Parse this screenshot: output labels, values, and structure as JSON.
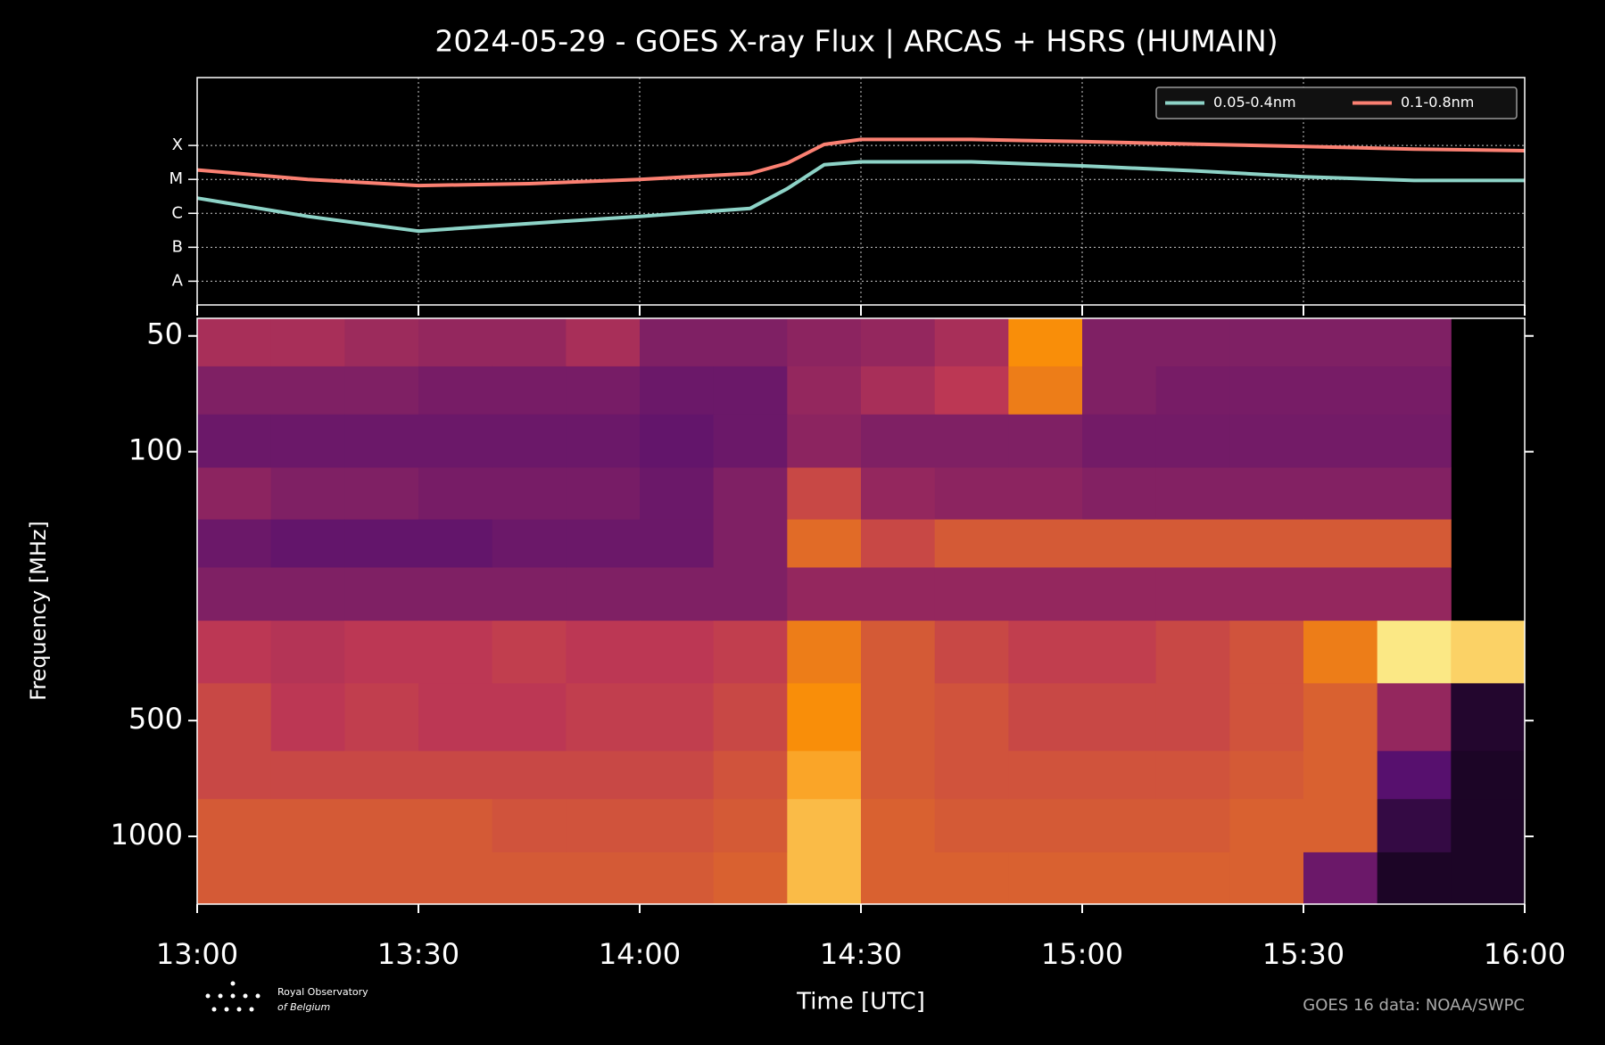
{
  "chart_data": [
    {
      "type": "line",
      "title": "2024-05-29 - GOES X-ray Flux | ARCAS + HSRS (HUMAIN)",
      "log_y": true,
      "grid": true,
      "legend": "upper right",
      "ylim": [
        2e-09,
        0.01
      ],
      "yticks": [
        {
          "value": 1e-08,
          "label": "A"
        },
        {
          "value": 1e-07,
          "label": "B"
        },
        {
          "value": 1e-06,
          "label": "C"
        },
        {
          "value": 1e-05,
          "label": "M"
        },
        {
          "value": 0.0001,
          "label": "X"
        }
      ],
      "x": [
        "13:00",
        "13:15",
        "13:30",
        "13:45",
        "14:00",
        "14:15",
        "14:20",
        "14:25",
        "14:30",
        "14:45",
        "15:00",
        "15:15",
        "15:30",
        "15:45",
        "16:00"
      ],
      "series": [
        {
          "name": "0.05-0.4nm",
          "color": "#8dd3c7",
          "values": [
            2.8e-06,
            8.1e-07,
            3e-07,
            5e-07,
            8.1e-07,
            1.4e-06,
            5.3e-06,
            2.7e-05,
            3.3e-05,
            3.3e-05,
            2.5e-05,
            1.8e-05,
            1.2e-05,
            9.3e-06,
            9.3e-06
          ]
        },
        {
          "name": "0.1-0.8nm",
          "color": "#fb8072",
          "values": [
            1.9e-05,
            1e-05,
            6.6e-06,
            7.5e-06,
            1e-05,
            1.5e-05,
            3e-05,
            0.000107,
            0.00015,
            0.00015,
            0.00013,
            0.00011,
            9.3e-05,
            7.8e-05,
            7e-05
          ]
        }
      ]
    },
    {
      "type": "heatmap",
      "xlabel": "Time [UTC]",
      "ylabel": "Frequency [MHz]",
      "colormap": "inferno",
      "log_y": true,
      "invert_y": true,
      "xlim": [
        "13:00",
        "16:00"
      ],
      "xticks": [
        "13:00",
        "13:30",
        "14:00",
        "14:30",
        "15:00",
        "15:30",
        "16:00"
      ],
      "ylim": [
        45,
        1500
      ],
      "yticks": [
        50,
        100,
        500,
        1000
      ],
      "x_bins": [
        "13:00",
        "13:10",
        "13:20",
        "13:30",
        "13:40",
        "13:50",
        "14:00",
        "14:10",
        "14:20",
        "14:30",
        "14:40",
        "14:50",
        "15:00",
        "15:10",
        "15:20",
        "15:30",
        "15:40",
        "15:50",
        "16:00"
      ],
      "y_bins": [
        45,
        60,
        80,
        110,
        150,
        200,
        275,
        400,
        600,
        800,
        1100,
        1500
      ],
      "values": [
        [
          0.45,
          0.45,
          0.42,
          0.4,
          0.4,
          0.45,
          0.35,
          0.35,
          0.38,
          0.4,
          0.45,
          0.75,
          0.35,
          0.35,
          0.35,
          0.35,
          0.35,
          null
        ],
        [
          0.35,
          0.35,
          0.35,
          0.33,
          0.33,
          0.33,
          0.3,
          0.3,
          0.4,
          0.45,
          0.5,
          0.7,
          0.35,
          0.33,
          0.33,
          0.33,
          0.33,
          null
        ],
        [
          0.3,
          0.3,
          0.3,
          0.3,
          0.3,
          0.3,
          0.28,
          0.3,
          0.38,
          0.35,
          0.35,
          0.35,
          0.32,
          0.32,
          0.32,
          0.32,
          0.32,
          null
        ],
        [
          0.38,
          0.35,
          0.35,
          0.33,
          0.33,
          0.33,
          0.3,
          0.35,
          0.55,
          0.4,
          0.38,
          0.38,
          0.36,
          0.36,
          0.36,
          0.36,
          0.36,
          null
        ],
        [
          0.3,
          0.28,
          0.28,
          0.28,
          0.3,
          0.3,
          0.3,
          0.35,
          0.65,
          0.55,
          0.6,
          0.6,
          0.6,
          0.6,
          0.6,
          0.6,
          0.6,
          null
        ],
        [
          0.35,
          0.35,
          0.35,
          0.35,
          0.35,
          0.35,
          0.35,
          0.35,
          0.4,
          0.4,
          0.4,
          0.4,
          0.4,
          0.4,
          0.4,
          0.4,
          0.4,
          null
        ],
        [
          0.5,
          0.48,
          0.5,
          0.5,
          0.52,
          0.5,
          0.5,
          0.52,
          0.7,
          0.6,
          0.55,
          0.52,
          0.52,
          0.55,
          0.58,
          0.7,
          0.95,
          0.9
        ],
        [
          0.55,
          0.5,
          0.52,
          0.5,
          0.5,
          0.52,
          0.52,
          0.55,
          0.75,
          0.6,
          0.58,
          0.55,
          0.55,
          0.55,
          0.58,
          0.62,
          0.4,
          0.1
        ],
        [
          0.55,
          0.55,
          0.55,
          0.55,
          0.55,
          0.55,
          0.55,
          0.58,
          0.8,
          0.6,
          0.58,
          0.58,
          0.58,
          0.58,
          0.6,
          0.62,
          0.25,
          0.08
        ],
        [
          0.6,
          0.6,
          0.6,
          0.6,
          0.58,
          0.58,
          0.58,
          0.6,
          0.85,
          0.62,
          0.6,
          0.6,
          0.6,
          0.6,
          0.62,
          0.62,
          0.15,
          0.08
        ],
        [
          0.6,
          0.6,
          0.6,
          0.6,
          0.6,
          0.6,
          0.6,
          0.62,
          0.85,
          0.62,
          0.62,
          0.62,
          0.62,
          0.62,
          0.62,
          0.3,
          0.08,
          0.08
        ]
      ]
    }
  ],
  "footer": {
    "credit": "GOES 16 data: NOAA/SWPC",
    "logo_line1": "Royal Observatory",
    "logo_line2": "of Belgium"
  }
}
